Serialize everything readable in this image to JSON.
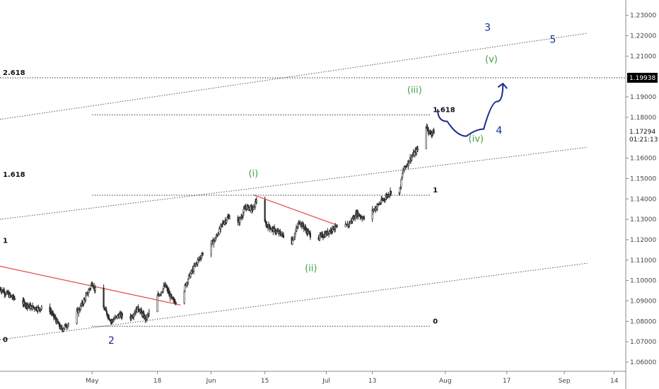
{
  "chart_data": {
    "type": "candlestick",
    "xlabel": "",
    "ylabel": "",
    "x_range": [
      "2020-04-07",
      "2020-09-17"
    ],
    "ylim": [
      1.0555,
      1.2375
    ],
    "x_ticks": [
      {
        "date": "2020-05-01",
        "label": "May"
      },
      {
        "date": "2020-05-18",
        "label": "18"
      },
      {
        "date": "2020-06-01",
        "label": "Jun"
      },
      {
        "date": "2020-06-15",
        "label": "15"
      },
      {
        "date": "2020-07-01",
        "label": "Jul"
      },
      {
        "date": "2020-07-13",
        "label": "13"
      },
      {
        "date": "2020-08-01",
        "label": "Aug"
      },
      {
        "date": "2020-08-17",
        "label": "17"
      },
      {
        "date": "2020-09-01",
        "label": "Sep"
      },
      {
        "date": "2020-09-14",
        "label": "14"
      }
    ],
    "y_ticks": [
      "1.23000",
      "1.22000",
      "1.21000",
      "1.19000",
      "1.18000",
      "1.16000",
      "1.15000",
      "1.14000",
      "1.13000",
      "1.12000",
      "1.11000",
      "1.10000",
      "1.09000",
      "1.08000",
      "1.07000",
      "1.06000"
    ],
    "price_path": [
      [
        "2020-04-07",
        1.096
      ],
      [
        "2020-04-10",
        1.092
      ],
      [
        "2020-04-15",
        1.087
      ],
      [
        "2020-04-20",
        1.0855
      ],
      [
        "2020-04-23",
        1.076
      ],
      [
        "2020-04-26",
        1.081
      ],
      [
        "2020-04-28",
        1.087
      ],
      [
        "2020-04-30",
        1.0945
      ],
      [
        "2020-05-01",
        1.099
      ],
      [
        "2020-05-03",
        1.09
      ],
      [
        "2020-05-06",
        1.08
      ],
      [
        "2020-05-08",
        1.083
      ],
      [
        "2020-05-11",
        1.082
      ],
      [
        "2020-05-13",
        1.0865
      ],
      [
        "2020-05-15",
        1.081
      ],
      [
        "2020-05-18",
        1.092
      ],
      [
        "2020-05-20",
        1.0975
      ],
      [
        "2020-05-22",
        1.09
      ],
      [
        "2020-05-24",
        1.0905
      ],
      [
        "2020-05-26",
        1.101
      ],
      [
        "2020-05-28",
        1.108
      ],
      [
        "2020-05-30",
        1.114
      ],
      [
        "2020-06-02",
        1.12
      ],
      [
        "2020-06-04",
        1.128
      ],
      [
        "2020-06-06",
        1.132
      ],
      [
        "2020-06-08",
        1.128
      ],
      [
        "2020-06-10",
        1.136
      ],
      [
        "2020-06-12",
        1.135
      ],
      [
        "2020-06-13",
        1.141
      ],
      [
        "2020-06-15",
        1.128
      ],
      [
        "2020-06-17",
        1.125
      ],
      [
        "2020-06-19",
        1.123
      ],
      [
        "2020-06-22",
        1.119
      ],
      [
        "2020-06-24",
        1.129
      ],
      [
        "2020-06-26",
        1.124
      ],
      [
        "2020-06-28",
        1.12
      ],
      [
        "2020-07-01",
        1.123
      ],
      [
        "2020-07-03",
        1.126
      ],
      [
        "2020-07-05",
        1.125
      ],
      [
        "2020-07-07",
        1.128
      ],
      [
        "2020-07-09",
        1.133
      ],
      [
        "2020-07-11",
        1.13
      ],
      [
        "2020-07-14",
        1.136
      ],
      [
        "2020-07-16",
        1.14
      ],
      [
        "2020-07-18",
        1.144
      ],
      [
        "2020-07-20",
        1.143
      ],
      [
        "2020-07-21",
        1.154
      ],
      [
        "2020-07-23",
        1.16
      ],
      [
        "2020-07-25",
        1.165
      ],
      [
        "2020-07-27",
        1.176
      ],
      [
        "2020-07-28",
        1.172
      ],
      [
        "2020-07-29",
        1.1729
      ]
    ],
    "current_price": {
      "value": 1.17294,
      "label": "1.17294",
      "countdown": "01:21:13"
    },
    "target_level": {
      "value": 1.19938,
      "label": "1.19938",
      "fib_label": "2.618"
    },
    "fib_levels": [
      {
        "label": "1.618",
        "value": 1.1812,
        "date_start": "2020-05-01",
        "date_end": "2020-07-28"
      },
      {
        "label": "1",
        "value": 1.1418,
        "date_start": "2020-05-01",
        "date_end": "2020-07-28"
      },
      {
        "label": "0",
        "value": 1.0776,
        "date_start": "2020-05-01",
        "date_end": "2020-07-28"
      }
    ],
    "left_fib_labels": [
      {
        "label": "2.618",
        "value": 1.19938
      },
      {
        "label": "1.618",
        "value": 1.1495
      },
      {
        "label": "1",
        "value": 1.117
      },
      {
        "label": "0",
        "value": 1.0685
      }
    ],
    "channel_lines": [
      {
        "start": [
          "2020-04-07",
          1.179
        ],
        "end": [
          "2020-09-07",
          1.2212
        ]
      },
      {
        "start": [
          "2020-04-07",
          1.13
        ],
        "end": [
          "2020-09-07",
          1.1653
        ]
      },
      {
        "start": [
          "2020-04-07",
          1.071
        ],
        "end": [
          "2020-09-07",
          1.1085
        ]
      }
    ],
    "trend_lines": [
      {
        "start": [
          "2020-04-07",
          1.107
        ],
        "end": [
          "2020-05-24",
          1.088
        ]
      },
      {
        "start": [
          "2020-06-12",
          1.142
        ],
        "end": [
          "2020-07-04",
          1.127
        ]
      }
    ],
    "projection_curve": [
      [
        "2020-07-30",
        1.184
      ],
      [
        "2020-08-04",
        1.172
      ],
      [
        "2020-08-09",
        1.1695
      ],
      [
        "2020-08-13",
        1.179
      ],
      [
        "2020-08-16",
        1.1965
      ]
    ],
    "wave_labels": [
      {
        "text": "(i)",
        "date": "2020-06-12",
        "price": 1.151,
        "color": "green"
      },
      {
        "text": "(ii)",
        "date": "2020-06-27",
        "price": 1.1045,
        "color": "green"
      },
      {
        "text": "(iii)",
        "date": "2020-07-24",
        "price": 1.192,
        "color": "green"
      },
      {
        "text": "(iv)",
        "date": "2020-08-09",
        "price": 1.168,
        "color": "green"
      },
      {
        "text": "(v)",
        "date": "2020-08-13",
        "price": 1.207,
        "color": "green"
      },
      {
        "text": "2",
        "date": "2020-05-06",
        "price": 1.069,
        "color": "blue"
      },
      {
        "text": "3",
        "date": "2020-08-12",
        "price": 1.2225,
        "color": "blue"
      },
      {
        "text": "4",
        "date": "2020-08-15",
        "price": 1.172,
        "color": "blue"
      },
      {
        "text": "5",
        "date": "2020-08-29",
        "price": 1.2165,
        "color": "blue"
      }
    ],
    "colors": {
      "candles": "#2b2b2b",
      "trend_line": "#e05a4f",
      "channel": "#555555",
      "projection": "#1a2c8f",
      "wave_green": "#43a047",
      "wave_blue": "#1a2c8f",
      "price_tag_bg": "#000000"
    },
    "grid": false,
    "legend": "none"
  }
}
